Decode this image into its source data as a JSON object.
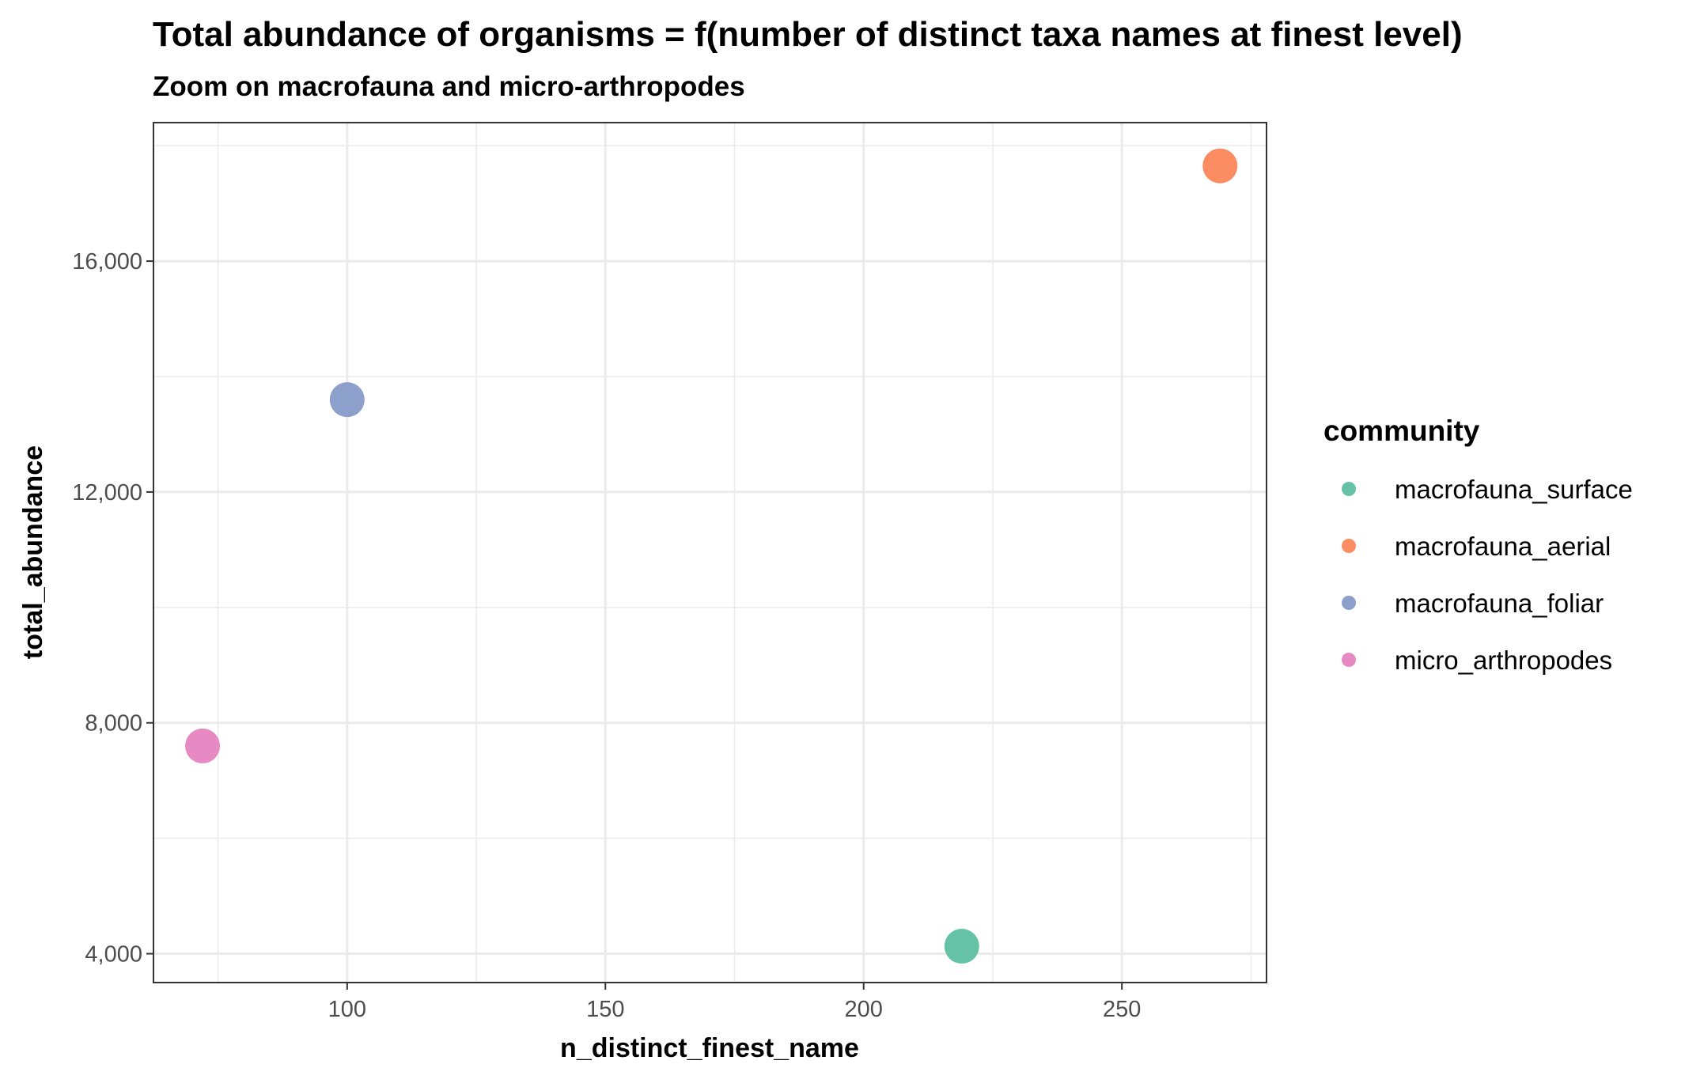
{
  "chart_data": {
    "type": "scatter",
    "title": "Total abundance of organisms = f(number of distinct taxa names at finest level)",
    "subtitle": "Zoom on macrofauna and micro-arthropodes",
    "xlabel": "n_distinct_finest_name",
    "ylabel": "total_abundance",
    "xlim": [
      62.5,
      278
    ],
    "ylim": [
      3500,
      18400
    ],
    "x_ticks": [
      100,
      150,
      200,
      250
    ],
    "x_tick_labels": [
      "100",
      "150",
      "200",
      "250"
    ],
    "x_minor_ticks": [
      75,
      125,
      175,
      225,
      275
    ],
    "y_ticks": [
      4000,
      8000,
      12000,
      16000
    ],
    "y_tick_labels": [
      "4,000",
      "8,000",
      "12,000",
      "16,000"
    ],
    "y_minor_ticks": [
      6000,
      10000,
      14000,
      18000
    ],
    "grid": true,
    "legend": {
      "title": "community",
      "position": "right",
      "entries": [
        {
          "name": "macrofauna_surface",
          "color": "#66C2A5"
        },
        {
          "name": "macrofauna_aerial",
          "color": "#FC8D62"
        },
        {
          "name": "macrofauna_foliar",
          "color": "#8DA0CB"
        },
        {
          "name": "micro_arthropodes",
          "color": "#E78AC3"
        }
      ]
    },
    "series": [
      {
        "name": "macrofauna_surface",
        "color": "#66C2A5",
        "points": [
          {
            "x": 219,
            "y": 4130
          }
        ]
      },
      {
        "name": "macrofauna_aerial",
        "color": "#FC8D62",
        "points": [
          {
            "x": 269,
            "y": 17650
          }
        ]
      },
      {
        "name": "macrofauna_foliar",
        "color": "#8DA0CB",
        "points": [
          {
            "x": 100,
            "y": 13600
          }
        ]
      },
      {
        "name": "micro_arthropodes",
        "color": "#E78AC3",
        "points": [
          {
            "x": 72,
            "y": 7600
          }
        ]
      }
    ]
  }
}
